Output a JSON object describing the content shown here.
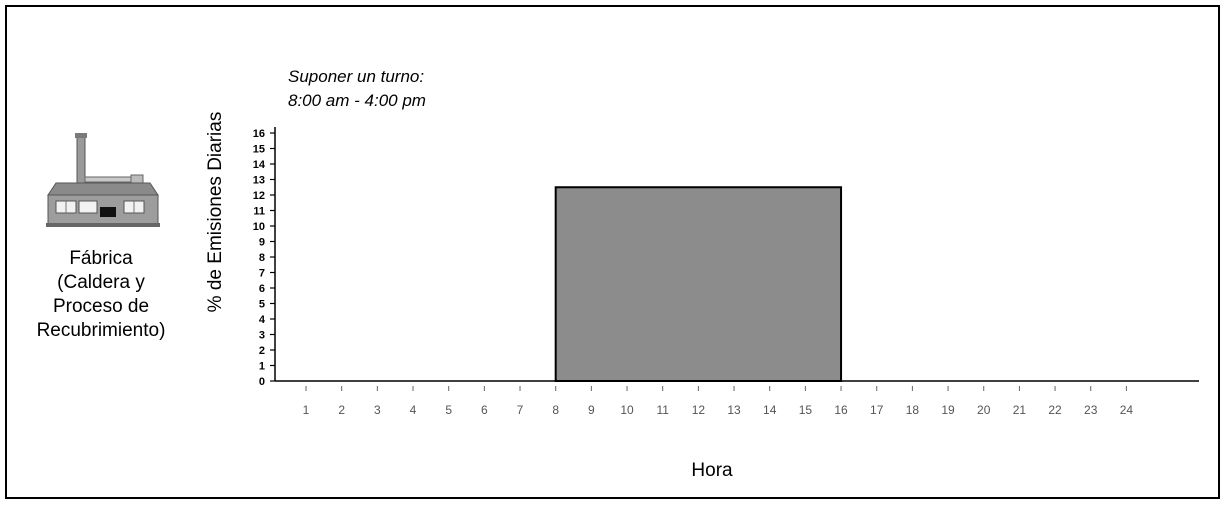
{
  "factory": {
    "icon": "factory-icon",
    "label_lines": [
      "Fábrica",
      "(Caldera y",
      "Proceso de",
      "Recubrimiento)"
    ]
  },
  "colors": {
    "bar_fill": "#8c8c8c",
    "bar_stroke": "#000000",
    "axis": "#000000"
  },
  "chart_data": {
    "type": "bar",
    "title": "",
    "xlabel": "Hora",
    "ylabel": "% de Emisiones Diarias",
    "x_ticks": [
      "1",
      "2",
      "3",
      "4",
      "5",
      "6",
      "7",
      "8",
      "9",
      "10",
      "11",
      "12",
      "13",
      "14",
      "15",
      "16",
      "17",
      "18",
      "19",
      "20",
      "21",
      "22",
      "23",
      "24"
    ],
    "y_ticks": [
      0,
      1,
      2,
      3,
      4,
      5,
      6,
      7,
      8,
      9,
      10,
      11,
      12,
      13,
      14,
      15,
      16
    ],
    "ylim": [
      0,
      16
    ],
    "series": [
      {
        "x_start": 8,
        "x_end": 16,
        "value": 12.5
      }
    ],
    "annotation": [
      "Suponer un turno:",
      "8:00 am - 4:00 pm"
    ],
    "grid": false,
    "legend": "none"
  }
}
